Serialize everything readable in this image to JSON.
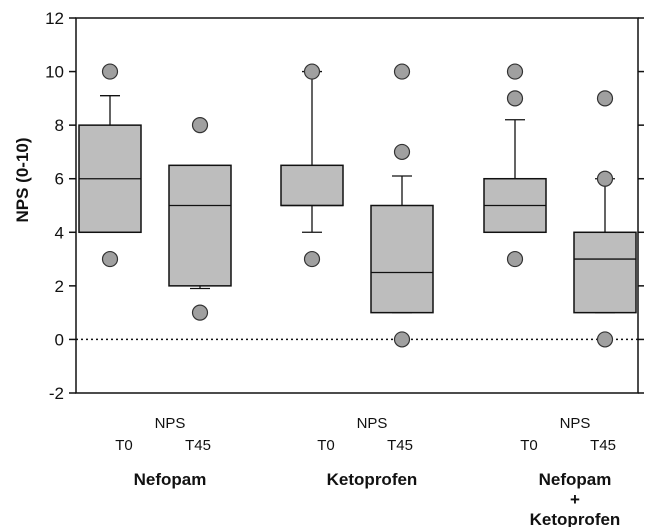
{
  "chart_data": {
    "type": "box",
    "ylabel": "NPS (0-10)",
    "ylim": [
      -2,
      12
    ],
    "yticks": [
      "-2",
      "0",
      "2",
      "4",
      "6",
      "8",
      "10",
      "12"
    ],
    "reference_line": 0,
    "colors": {
      "box": "#bdbdbd",
      "outlier": "#a0a0a0",
      "line": "#111111"
    },
    "groups": [
      {
        "name_lines": [
          "Nefopam"
        ],
        "subheader": "NPS",
        "boxes": [
          {
            "label": "T0",
            "whisker_low": 4,
            "q1": 4,
            "median": 6,
            "q3": 8,
            "whisker_high": 9.1,
            "outliers": [
              3,
              10
            ]
          },
          {
            "label": "T45",
            "whisker_low": 1.9,
            "q1": 2,
            "median": 5,
            "q3": 6.5,
            "whisker_high": 6.5,
            "outliers": [
              1,
              8
            ]
          }
        ]
      },
      {
        "name_lines": [
          "Ketoprofen"
        ],
        "subheader": "NPS",
        "boxes": [
          {
            "label": "T0",
            "whisker_low": 4,
            "q1": 5,
            "median": 5,
            "q3": 6.5,
            "whisker_high": 10,
            "outliers": [
              3,
              10
            ]
          },
          {
            "label": "T45",
            "whisker_low": 1,
            "q1": 1,
            "median": 2.5,
            "q3": 5,
            "whisker_high": 6.1,
            "outliers": [
              0,
              7,
              10
            ]
          }
        ]
      },
      {
        "name_lines": [
          "Nefopam",
          "+",
          "Ketoprofen"
        ],
        "subheader": "NPS",
        "boxes": [
          {
            "label": "T0",
            "whisker_low": 4,
            "q1": 4,
            "median": 5,
            "q3": 6,
            "whisker_high": 8.2,
            "outliers": [
              3,
              9,
              10
            ]
          },
          {
            "label": "T45",
            "whisker_low": 1,
            "q1": 1,
            "median": 3,
            "q3": 4,
            "whisker_high": 6,
            "outliers": [
              0,
              6,
              9
            ]
          }
        ]
      }
    ]
  }
}
